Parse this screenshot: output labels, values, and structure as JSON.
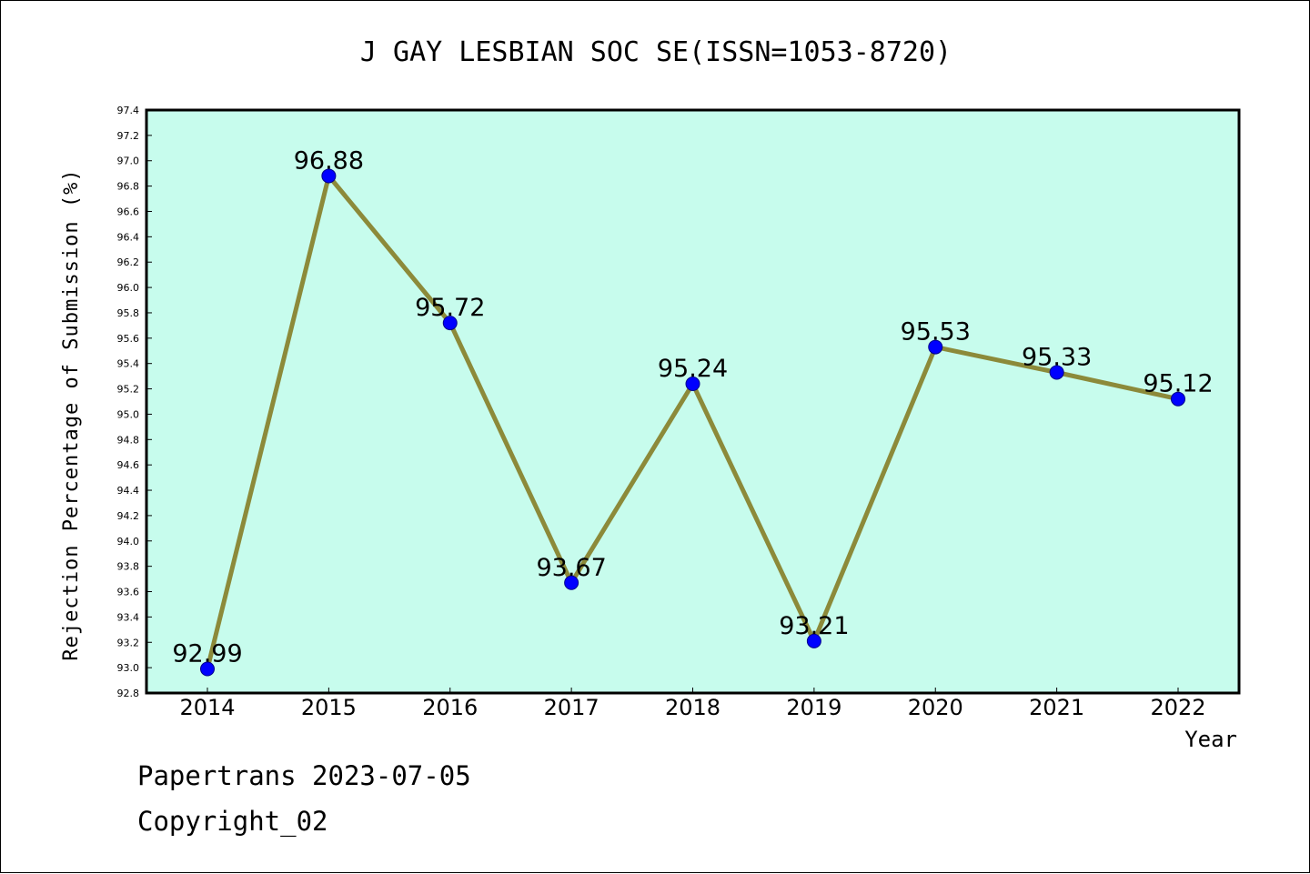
{
  "chart_data": {
    "type": "line",
    "title": "J GAY LESBIAN SOC SE(ISSN=1053-8720)",
    "xlabel": "Year",
    "ylabel": "Rejection Percentage of Submission (%)",
    "categories": [
      "2014",
      "2015",
      "2016",
      "2017",
      "2018",
      "2019",
      "2020",
      "2021",
      "2022"
    ],
    "series": [
      {
        "values": [
          92.99,
          96.88,
          95.72,
          93.67,
          95.24,
          93.21,
          95.53,
          95.33,
          95.12
        ]
      }
    ],
    "data_labels": [
      "92.99",
      "96.88",
      "95.72",
      "93.67",
      "95.24",
      "93.21",
      "95.53",
      "95.33",
      "95.12"
    ],
    "ylim": [
      92.8,
      97.4
    ],
    "yticks": [
      "92.8",
      "93.0",
      "93.2",
      "93.4",
      "93.6",
      "93.8",
      "94.0",
      "94.2",
      "94.4",
      "94.6",
      "94.8",
      "95.0",
      "95.2",
      "95.4",
      "95.6",
      "95.8",
      "96.0",
      "96.2",
      "96.4",
      "96.6",
      "96.8",
      "97.0",
      "97.2",
      "97.4"
    ],
    "grid": false,
    "colors": {
      "plot_background": "#c7fced",
      "line": "#8c8a3a",
      "marker": "#0000ff"
    }
  },
  "footer": {
    "line1": "Papertrans 2023-07-05",
    "line2": "Copyright_02"
  }
}
